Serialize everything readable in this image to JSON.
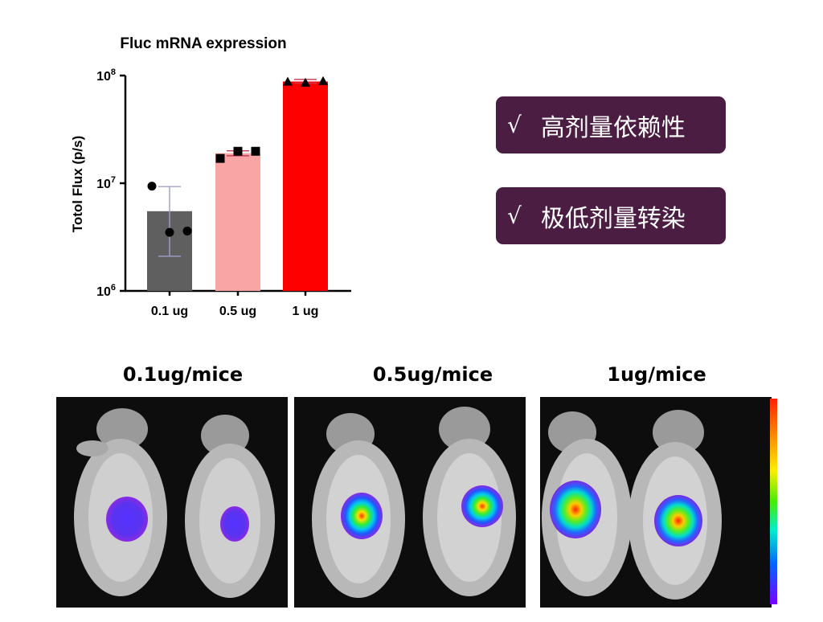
{
  "chart_data": {
    "type": "bar",
    "title": "Fluc mRNA expression",
    "xlabel": "",
    "ylabel": "Totol Flux (p/s)",
    "yscale": "log",
    "ylim": [
      1000000,
      100000000
    ],
    "yticks": [
      {
        "value": 1000000,
        "base": "10",
        "exp": "6"
      },
      {
        "value": 10000000,
        "base": "10",
        "exp": "7"
      },
      {
        "value": 100000000,
        "base": "10",
        "exp": "8"
      }
    ],
    "categories": [
      "0.1 ug",
      "0.5 ug",
      "1 ug"
    ],
    "values": [
      5500000,
      19000000,
      88000000
    ],
    "error_low": [
      2100000,
      18000000,
      85000000
    ],
    "error_high": [
      9300000,
      20000000,
      92000000
    ],
    "bar_colors": [
      "#5f5f5f",
      "#f9a5a5",
      "#ff0000"
    ],
    "point_markers": [
      "circle",
      "square",
      "triangle"
    ],
    "points": [
      [
        9400000,
        3500000,
        3600000
      ],
      [
        17000000,
        19800000,
        19800000
      ],
      [
        88000000,
        86000000,
        89000000
      ]
    ],
    "grid": false
  },
  "badges": [
    {
      "check": "√",
      "text": "高剂量依赖性"
    },
    {
      "check": "√",
      "text": "极低剂量转染"
    }
  ],
  "imaging": {
    "panels": [
      {
        "label": "0.1ug/mice"
      },
      {
        "label": "0.5ug/mice"
      },
      {
        "label": "1ug/mice"
      }
    ],
    "colorbar": [
      "#ff2200",
      "#ff8800",
      "#ffee00",
      "#44ee00",
      "#00eecc",
      "#0066ff",
      "#7700ff"
    ]
  }
}
